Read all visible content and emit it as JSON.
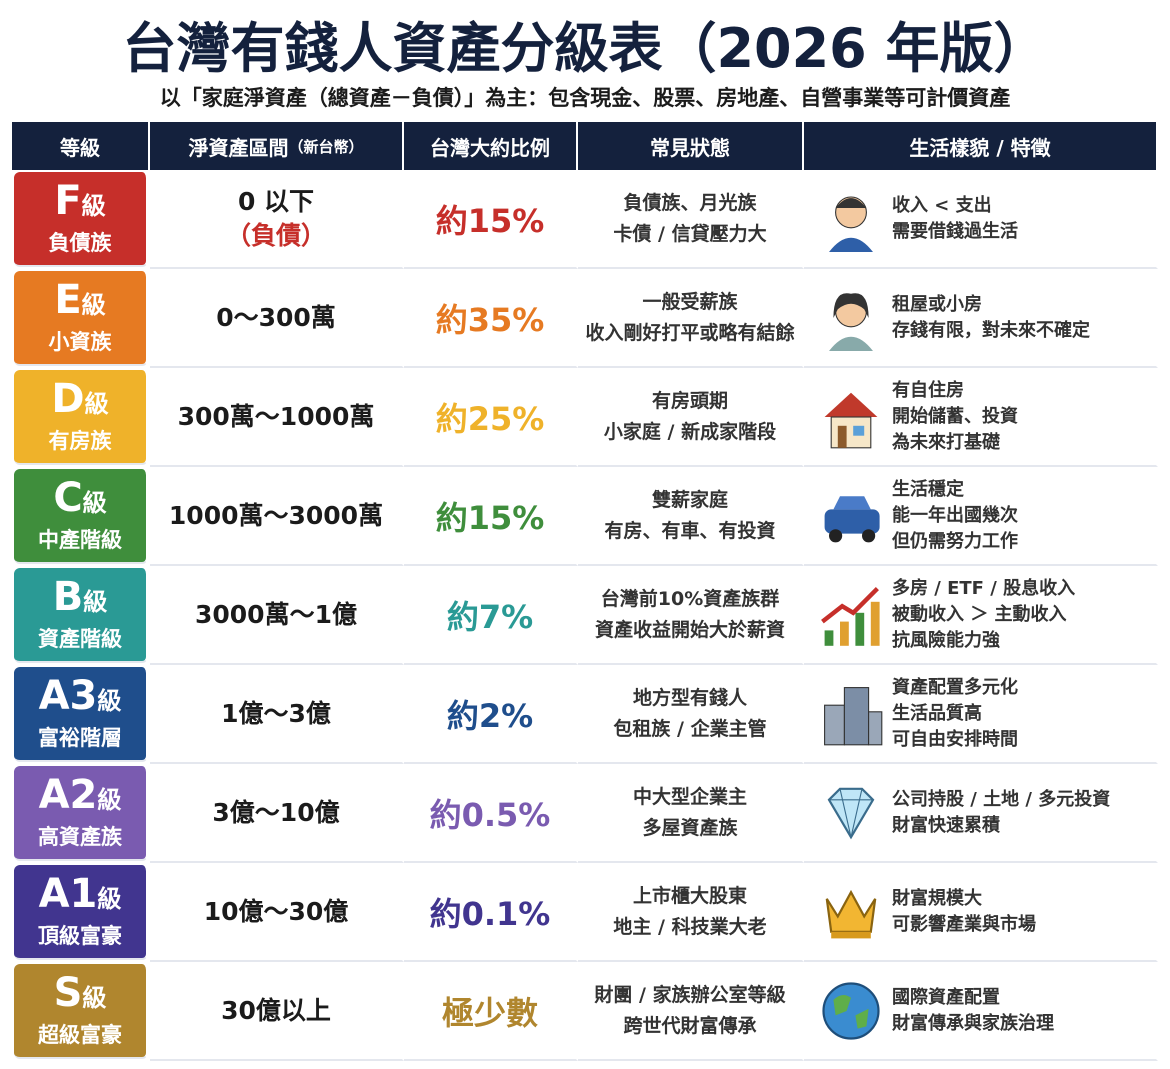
{
  "header": {
    "title": "台灣有錢人資產分級表（2026 年版）",
    "subtitle": "以「家庭淨資產（總資產－負債）」為主：包含現金、股票、房地產、自營事業等可計價資產"
  },
  "table": {
    "columns": [
      "等級",
      "淨資產區間",
      "（新台幣）",
      "台灣大約比例",
      "常見狀態",
      "生活樣貌 / 特徵"
    ],
    "rows": [
      {
        "grade": "F",
        "suffix": "級",
        "group": "負債族",
        "color": "#c62f2a",
        "range": [
          "0 以下",
          "（負債）"
        ],
        "share": "約15%",
        "status": [
          "負債族、月光族",
          "卡債 / 信貸壓力大"
        ],
        "life": [
          "收入 < 支出",
          "需要借錢過生活"
        ]
      },
      {
        "grade": "E",
        "suffix": "級",
        "group": "小資族",
        "color": "#e67a22",
        "range": [
          "0～300萬"
        ],
        "share": "約35%",
        "status": [
          "一般受薪族",
          "收入剛好打平或略有結餘"
        ],
        "life": [
          "租屋或小房",
          "存錢有限，對未來不確定"
        ]
      },
      {
        "grade": "D",
        "suffix": "級",
        "group": "有房族",
        "color": "#efb22a",
        "range": [
          "300萬～1000萬"
        ],
        "share": "約25%",
        "status": [
          "有房頭期",
          "小家庭 / 新成家階段"
        ],
        "life": [
          "有自住房",
          "開始儲蓄、投資",
          "為未來打基礎"
        ]
      },
      {
        "grade": "C",
        "suffix": "級",
        "group": "中產階級",
        "color": "#3f8e3c",
        "range": [
          "1000萬～3000萬"
        ],
        "share": "約15%",
        "status": [
          "雙薪家庭",
          "有房、有車、有投資"
        ],
        "life": [
          "生活穩定",
          "能一年出國幾次",
          "但仍需努力工作"
        ]
      },
      {
        "grade": "B",
        "suffix": "級",
        "group": "資產階級",
        "color": "#2a9a95",
        "range": [
          "3000萬～1億"
        ],
        "share": "約7%",
        "status": [
          "台灣前10%資產族群",
          "資產收益開始大於薪資"
        ],
        "life": [
          "多房 / ETF / 股息收入",
          "被動收入 ＞ 主動收入",
          "抗風險能力強"
        ]
      },
      {
        "grade": "A3",
        "suffix": "級",
        "group": "富裕階層",
        "color": "#1f4e8c",
        "range": [
          "1億～3億"
        ],
        "share": "約2%",
        "status": [
          "地方型有錢人",
          "包租族 / 企業主管"
        ],
        "life": [
          "資產配置多元化",
          "生活品質高",
          "可自由安排時間"
        ]
      },
      {
        "grade": "A2",
        "suffix": "級",
        "group": "高資產族",
        "color": "#7a5bb0",
        "range": [
          "3億～10億"
        ],
        "share": "約0.5%",
        "status": [
          "中大型企業主",
          "多屋資產族"
        ],
        "life": [
          "公司持股 / 土地 / 多元投資",
          "財富快速累積"
        ]
      },
      {
        "grade": "A1",
        "suffix": "級",
        "group": "頂級富豪",
        "color": "#41358f",
        "range": [
          "10億～30億"
        ],
        "share": "約0.1%",
        "status": [
          "上市櫃大股東",
          "地主 / 科技業大老"
        ],
        "life": [
          "財富規模大",
          "可影響產業與市場"
        ]
      },
      {
        "grade": "S",
        "suffix": "級",
        "group": "超級富豪",
        "color": "#b0862e",
        "range": [
          "30億以上"
        ],
        "share": "極少數",
        "status": [
          "財團 / 家族辦公室等級",
          "跨世代財富傳承"
        ],
        "life": [
          "國際資產配置",
          "財富傳承與家族治理"
        ]
      }
    ]
  }
}
